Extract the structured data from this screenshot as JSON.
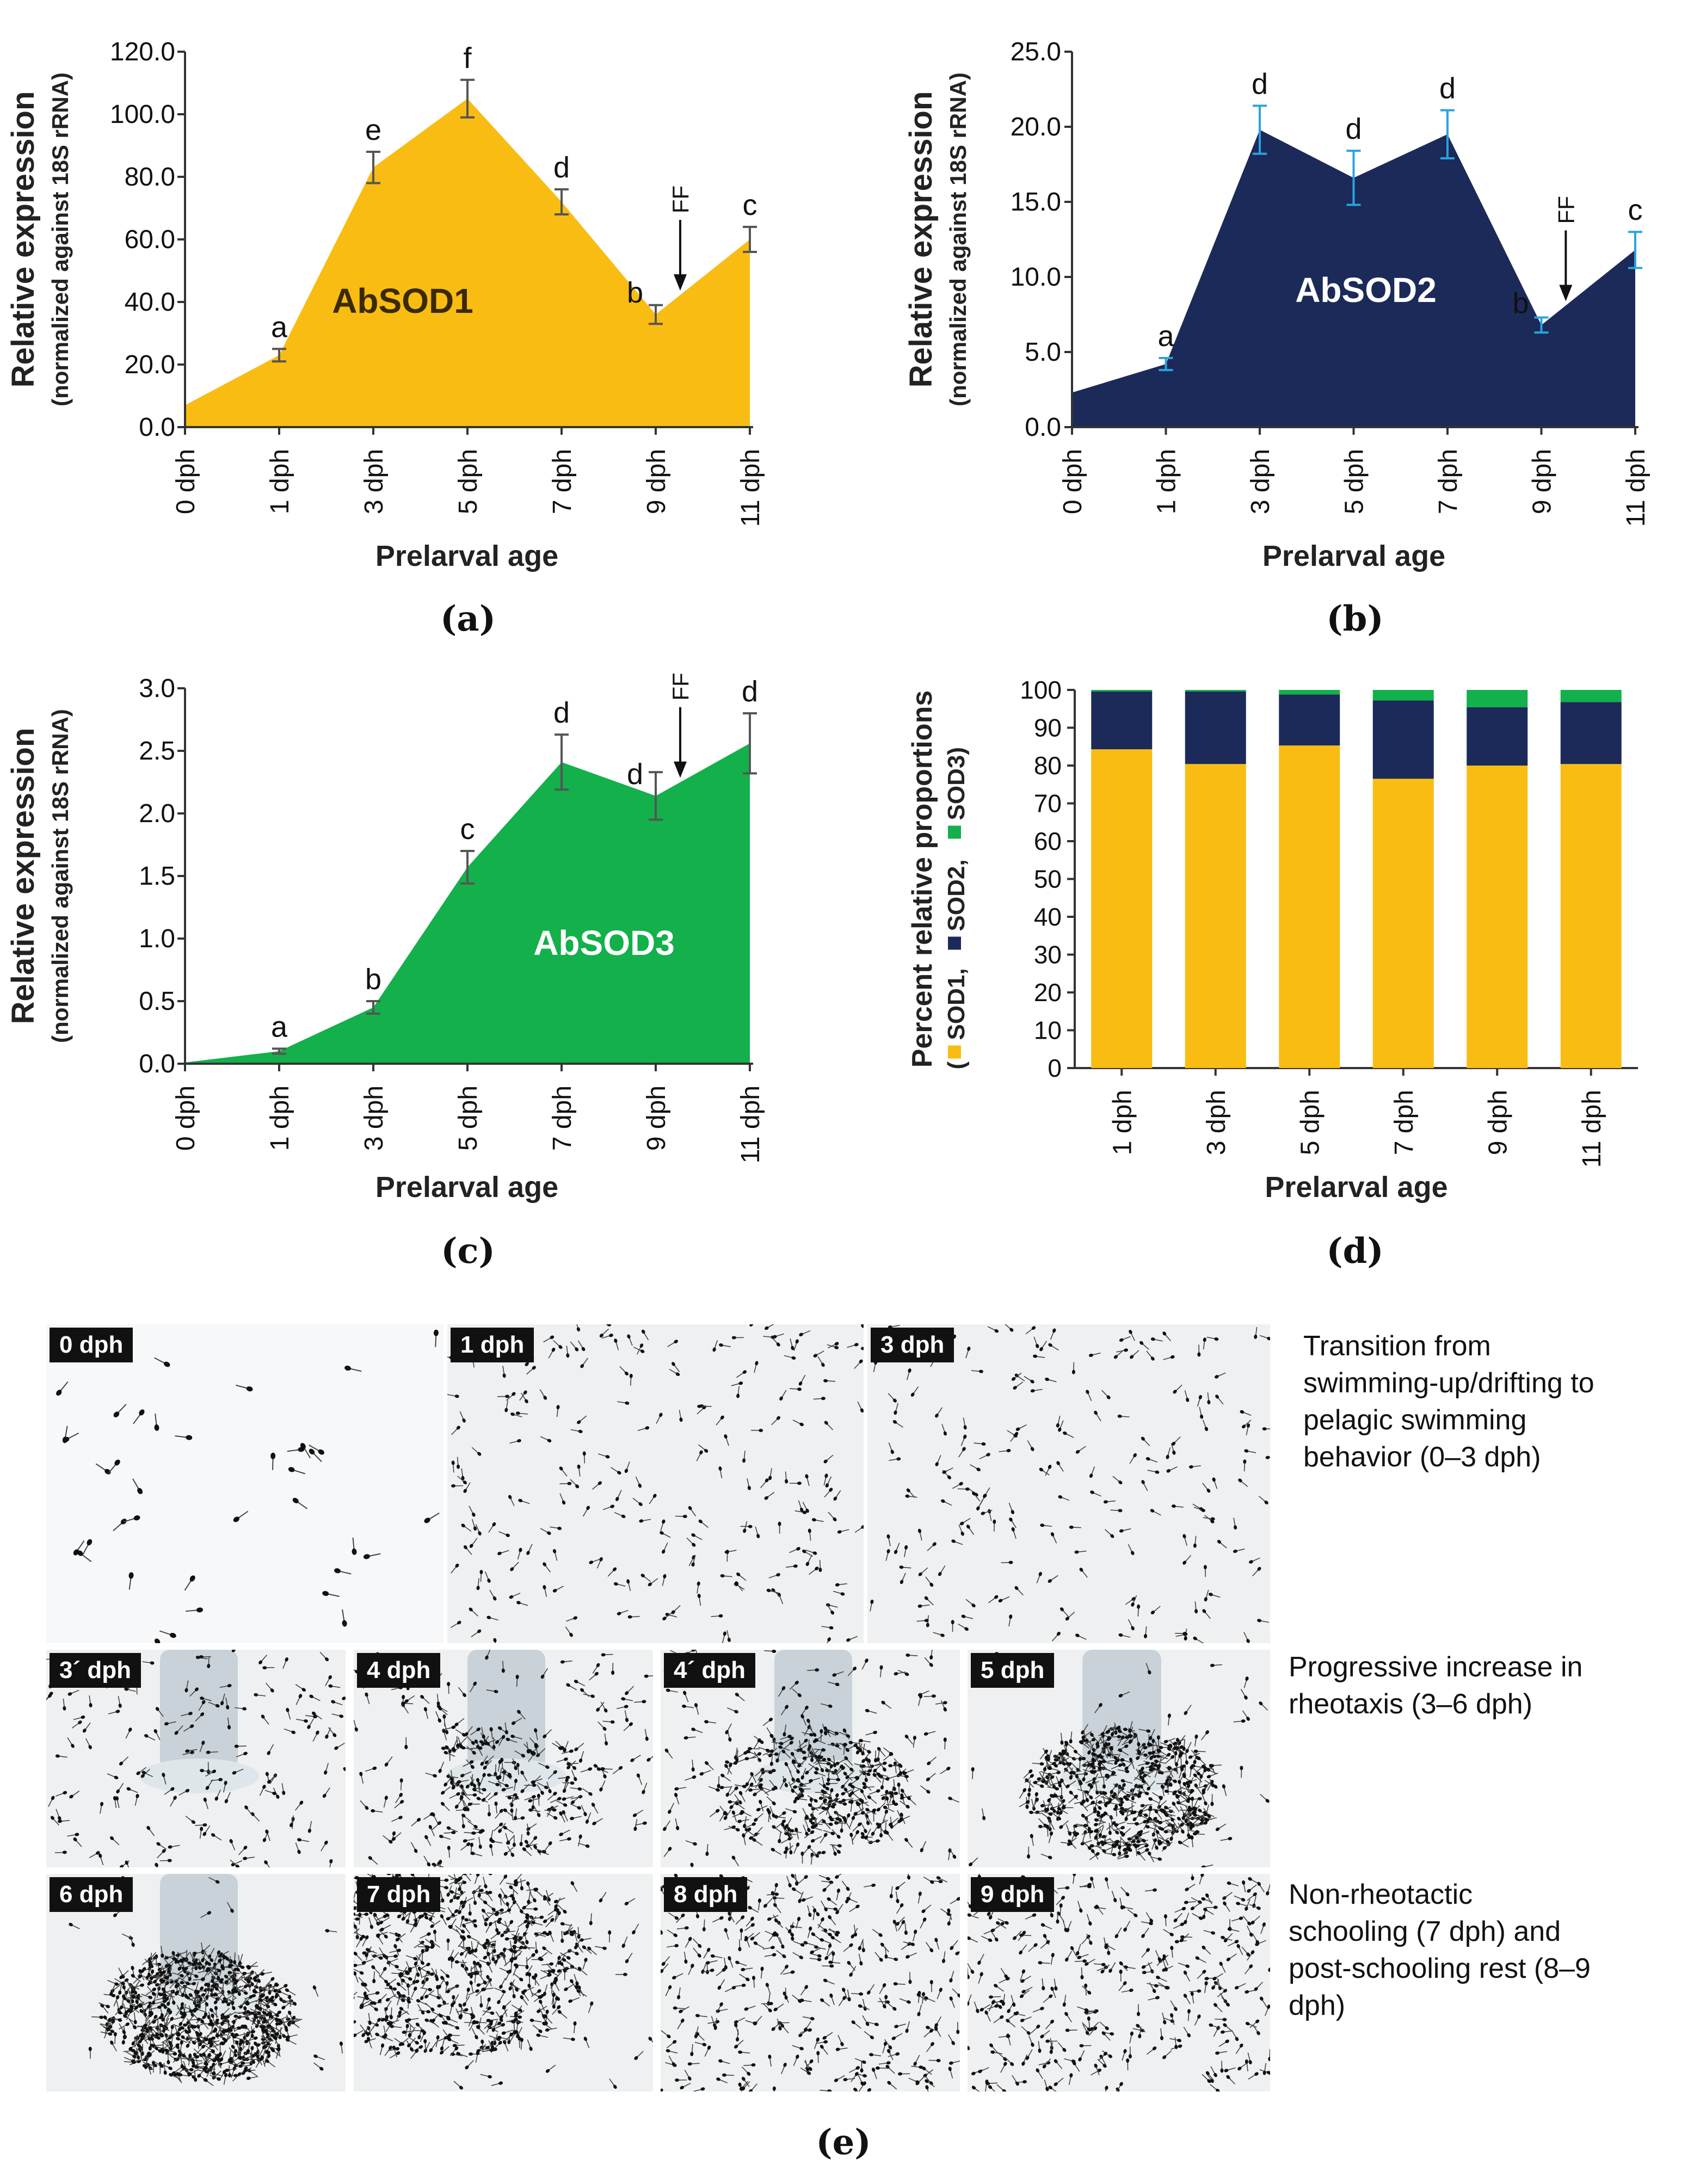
{
  "chart_data": [
    {
      "id": "a",
      "type": "area",
      "panel_label": "(a)",
      "inner_label": "AbSOD1",
      "fill": "#F9BC13",
      "text_color": "#3a2a00",
      "error_color": "#555555",
      "ylabel": "Relative expression",
      "ylabel2": "(normalized against 18S rRNA)",
      "xlabel": "Prelarval age",
      "categories": [
        "0 dph",
        "1 dph",
        "3 dph",
        "5 dph",
        "7 dph",
        "9 dph",
        "11 dph"
      ],
      "values": [
        7.0,
        23.0,
        83.0,
        105.0,
        72.0,
        36.0,
        60.0
      ],
      "errors": [
        0,
        2.0,
        5.0,
        6.0,
        4.0,
        3.0,
        4.0
      ],
      "letters": [
        "",
        "a",
        "e",
        "f",
        "d",
        "b",
        "c"
      ],
      "ylim": [
        0,
        120
      ],
      "yticks": [
        "0.0",
        "20.0",
        "40.0",
        "60.0",
        "80.0",
        "100.0",
        "120.0"
      ],
      "annotation": "FF"
    },
    {
      "id": "b",
      "type": "area",
      "panel_label": "(b)",
      "inner_label": "AbSOD2",
      "fill": "#1B2A59",
      "text_color": "#ffffff",
      "error_color": "#29A3E0",
      "ylabel": "Relative expression",
      "ylabel2": "(normalized against 18S rRNA)",
      "xlabel": "Prelarval age",
      "categories": [
        "0 dph",
        "1 dph",
        "3 dph",
        "5 dph",
        "7 dph",
        "9 dph",
        "11 dph"
      ],
      "values": [
        2.3,
        4.2,
        19.8,
        16.6,
        19.5,
        6.8,
        11.8
      ],
      "errors": [
        0,
        0.4,
        1.6,
        1.8,
        1.6,
        0.5,
        1.2
      ],
      "letters": [
        "",
        "a",
        "d",
        "d",
        "d",
        "b",
        "c"
      ],
      "ylim": [
        0,
        25
      ],
      "yticks": [
        "0.0",
        "5.0",
        "10.0",
        "15.0",
        "20.0",
        "25.0"
      ],
      "annotation": "FF"
    },
    {
      "id": "c",
      "type": "area",
      "panel_label": "(c)",
      "inner_label": "AbSOD3",
      "fill": "#13B04B",
      "text_color": "#ffffff",
      "error_color": "#555555",
      "ylabel": "Relative expression",
      "ylabel2": "(normalized against 18S rRNA)",
      "xlabel": "Prelarval age",
      "categories": [
        "0 dph",
        "1 dph",
        "3 dph",
        "5 dph",
        "7 dph",
        "9 dph",
        "11 dph"
      ],
      "values": [
        0.01,
        0.1,
        0.45,
        1.57,
        2.41,
        2.14,
        2.56
      ],
      "errors": [
        0,
        0.02,
        0.05,
        0.13,
        0.22,
        0.19,
        0.24
      ],
      "letters": [
        "",
        "a",
        "b",
        "c",
        "d",
        "d",
        "d"
      ],
      "ylim": [
        0,
        3.0
      ],
      "yticks": [
        "0.0",
        "0.5",
        "1.0",
        "1.5",
        "2.0",
        "2.5",
        "3.0"
      ],
      "annotation": "FF"
    },
    {
      "id": "d",
      "type": "bar",
      "stacked": true,
      "panel_label": "(d)",
      "ylabel": "Percent relative proportions",
      "legend_sod1": "SOD1,",
      "legend_sod2": "SOD2,",
      "legend_sod3": "SOD3)",
      "xlabel": "Prelarval age",
      "categories": [
        "1 dph",
        "3 dph",
        "5 dph",
        "7 dph",
        "9 dph",
        "11 dph"
      ],
      "series": [
        {
          "name": "SOD1",
          "color": "#F9BC13",
          "values": [
            84.3,
            80.4,
            85.3,
            76.5,
            80.0,
            80.4
          ]
        },
        {
          "name": "SOD2",
          "color": "#1B2A59",
          "values": [
            15.3,
            19.2,
            13.5,
            20.7,
            15.4,
            16.4
          ]
        },
        {
          "name": "SOD3",
          "color": "#13B04B",
          "values": [
            0.4,
            0.4,
            1.2,
            2.8,
            4.6,
            3.2
          ]
        }
      ],
      "ylim": [
        0,
        100
      ],
      "yticks": [
        "0",
        "10",
        "20",
        "30",
        "40",
        "50",
        "60",
        "70",
        "80",
        "90",
        "100"
      ]
    }
  ],
  "photos": {
    "panel_label": "(e)",
    "row1": [
      "0 dph",
      "1 dph",
      "3 dph"
    ],
    "row2": [
      "3´ dph",
      "4 dph",
      "4´ dph",
      "5 dph"
    ],
    "row3": [
      "6 dph",
      "7 dph",
      "8 dph",
      "9 dph"
    ],
    "captions": [
      [
        "Transition from",
        "swimming-up/drifting to",
        "pelagic swimming",
        "behavior (0–3 dph)"
      ],
      [
        "Progressive increase in",
        "rheotaxis (3–6 dph)"
      ],
      [
        "Non-rheotactic",
        "schooling (7 dph) and",
        "post-schooling rest (8–9",
        "dph)"
      ]
    ]
  }
}
